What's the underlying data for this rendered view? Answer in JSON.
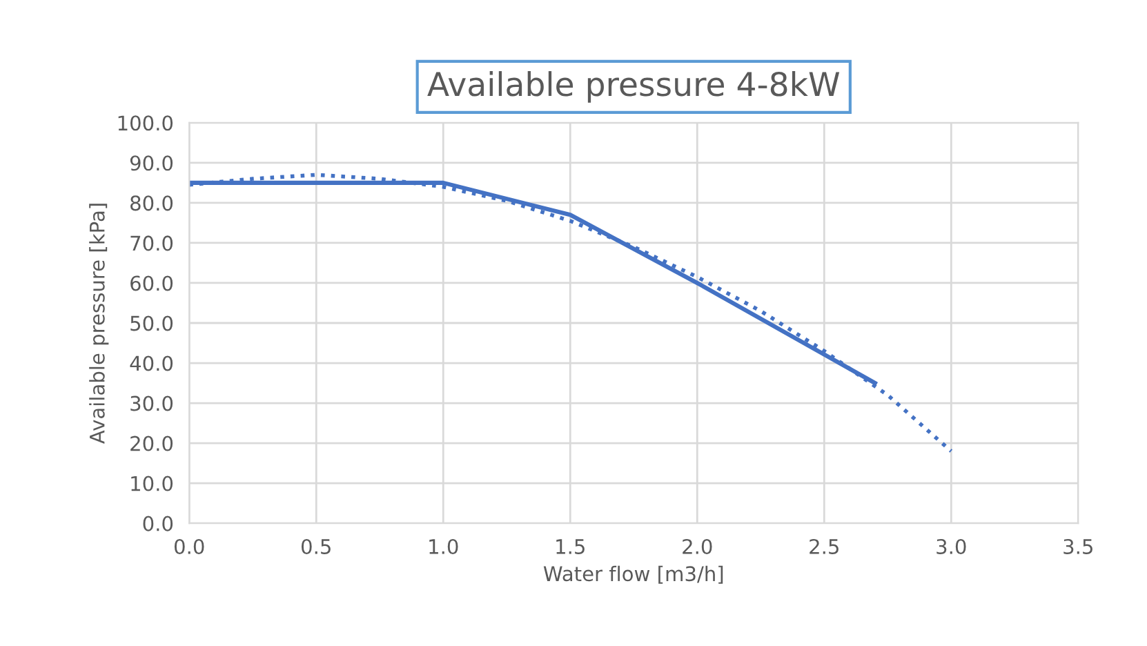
{
  "chart_data": {
    "type": "line",
    "title": "Available pressure 4-8kW",
    "xlabel": "Water flow [m3/h]",
    "ylabel": "Available pressure [kPa]",
    "xlim": [
      0,
      3.5
    ],
    "xticks": [
      {
        "value": 0,
        "label": "0.0"
      },
      {
        "value": 0.5,
        "label": "0.5"
      },
      {
        "value": 1,
        "label": "1.0"
      },
      {
        "value": 1.5,
        "label": "1.5"
      },
      {
        "value": 2,
        "label": "2.0"
      },
      {
        "value": 2.5,
        "label": "2.5"
      },
      {
        "value": 3,
        "label": "3.0"
      },
      {
        "value": 3.5,
        "label": "3.5"
      }
    ],
    "ylim": [
      0,
      100
    ],
    "yticks": [
      {
        "value": 0,
        "label": "0.0"
      },
      {
        "value": 10,
        "label": "10.0"
      },
      {
        "value": 20,
        "label": "20.0"
      },
      {
        "value": 30,
        "label": "30.0"
      },
      {
        "value": 40,
        "label": "40.0"
      },
      {
        "value": 50,
        "label": "50.0"
      },
      {
        "value": 60,
        "label": "60.0"
      },
      {
        "value": 70,
        "label": "70.0"
      },
      {
        "value": 80,
        "label": "80.0"
      },
      {
        "value": 90,
        "label": "90.0"
      },
      {
        "value": 100,
        "label": "100.0"
      }
    ],
    "grid": true,
    "legend": false,
    "series": [
      {
        "color": "#4472c4",
        "line_style": "solid",
        "x": [
          0,
          1.0,
          1.5,
          2.0,
          2.7
        ],
        "values": [
          85,
          85,
          77,
          60,
          35
        ]
      },
      {
        "color": "#4472c4",
        "line_style": "dotted",
        "x": [
          0,
          0.25,
          0.5,
          0.75,
          1.0,
          1.25,
          1.5,
          1.75,
          2.0,
          2.25,
          2.5,
          2.75,
          3.0
        ],
        "values": [
          84.5,
          86,
          87,
          86,
          84,
          80.5,
          75.5,
          69,
          61.5,
          53,
          43,
          32,
          18
        ]
      }
    ]
  }
}
